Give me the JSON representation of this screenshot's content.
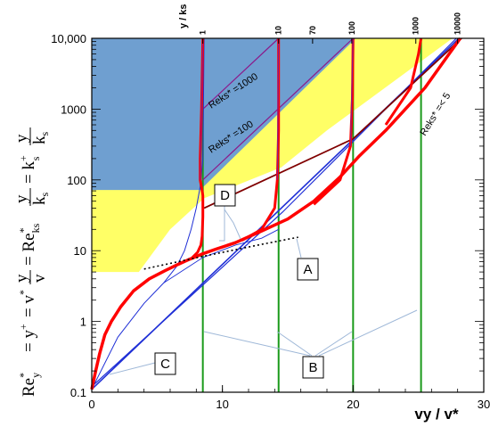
{
  "chart_data": {
    "type": "line",
    "xlabel": "vy / v*",
    "ylabel": "Re*y = y+ = v* y/v = Re*ks y/ks = k+s y/ks",
    "ylabel_parts": {
      "p1": "Re",
      "p1_sup": "*",
      "p1_sub": "y",
      "p2": "= y",
      "p2_sup": "+",
      "p3": "= v",
      "p3_sup": "*",
      "p4_num": "y",
      "p4_den": "v",
      "p5": "= Re",
      "p5_sup": "*",
      "p5_sub": "ks",
      "p6_num": "y",
      "p6_den": "k",
      "p6_den_sub": "s",
      "p7": "= k",
      "p7_sup": "+",
      "p7_sub": "s",
      "p8_num": "y",
      "p8_den": "k",
      "p8_den_sub": "s"
    },
    "top_axis_title": "y / ks",
    "xlim": [
      0,
      30
    ],
    "ylim": [
      0.1,
      10000
    ],
    "y_scale": "log",
    "x_ticks": [
      0,
      10,
      20,
      30
    ],
    "x_tick_labels": [
      "0",
      "10",
      "20",
      "30"
    ],
    "y_ticks": [
      0.1,
      1,
      10,
      100,
      1000,
      10000
    ],
    "y_tick_labels": [
      "0.1",
      "1",
      "10",
      "100",
      "1000",
      "10,000"
    ],
    "top_ticks": [
      {
        "label": "1",
        "x": 8.5
      },
      {
        "label": "10",
        "x": 14.3
      },
      {
        "label": "70",
        "x": 16.9
      },
      {
        "label": "100",
        "x": 19.9
      },
      {
        "label": "1000",
        "x": 24.8
      },
      {
        "label": "10000",
        "x": 28.0
      }
    ],
    "verticals_x": [
      8.5,
      14.3,
      20.0,
      25.2
    ],
    "annotations": [
      {
        "text": "Reks* =1000"
      },
      {
        "text": "Reks* =100"
      },
      {
        "text": "Reks* =< 5"
      }
    ],
    "boxes": [
      {
        "label": "A"
      },
      {
        "label": "B"
      },
      {
        "label": "C"
      },
      {
        "label": "D"
      }
    ],
    "colors": {
      "blue_region": "#6f9fd0",
      "yellow_region": "#ffff66",
      "red_curve": "#ff0000",
      "blue_curve": "#1f2fd6",
      "purple_line": "#8b1a8b",
      "green_line": "#1a9a1a",
      "dark_line": "#800000",
      "leader_line": "#9fb8d8"
    },
    "grid": false
  }
}
